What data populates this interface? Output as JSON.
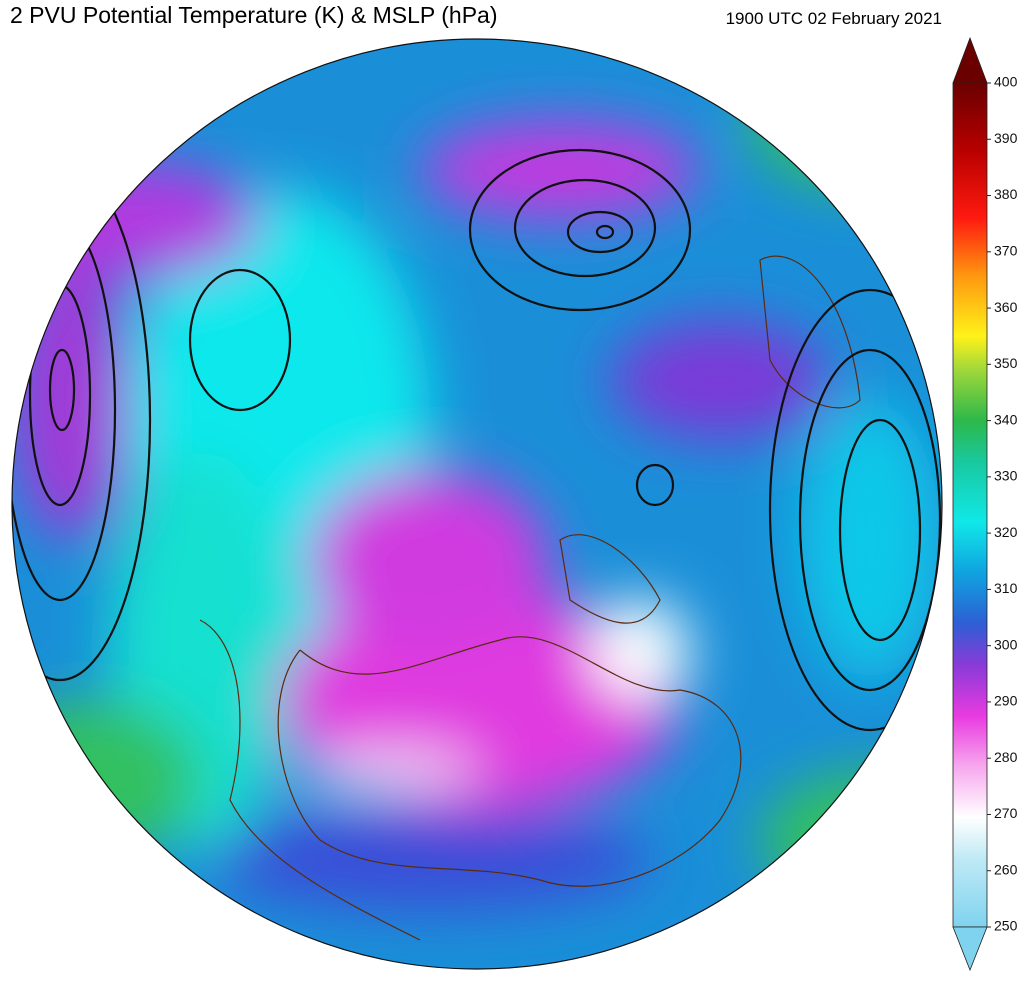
{
  "header": {
    "title": "2 PVU Potential Temperature (K) & MSLP (hPa)",
    "timestamp": "1900 UTC 02 February 2021"
  },
  "colorbar": {
    "range": [
      250,
      400
    ],
    "ticks": [
      250,
      260,
      270,
      280,
      290,
      300,
      310,
      320,
      330,
      340,
      350,
      360,
      370,
      380,
      390,
      400
    ]
  }
}
